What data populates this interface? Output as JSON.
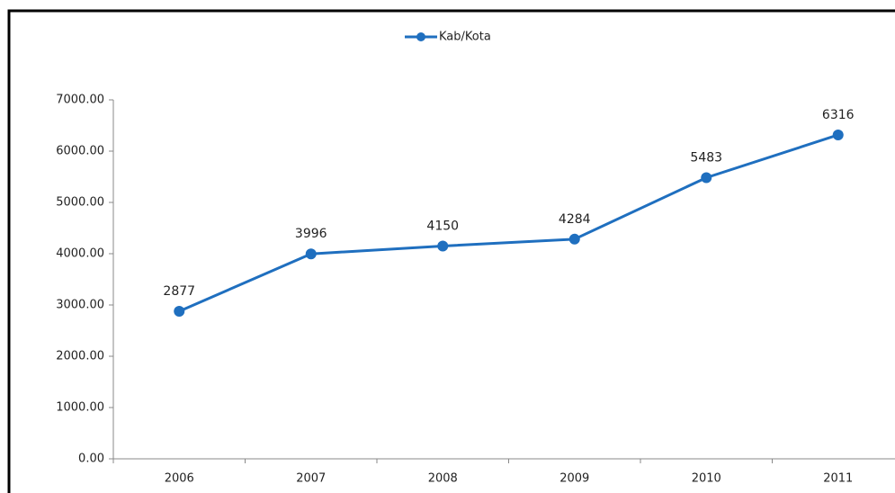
{
  "chart_data": {
    "type": "line",
    "categories": [
      "2006",
      "2007",
      "2008",
      "2009",
      "2010",
      "2011"
    ],
    "series": [
      {
        "name": "Kab/Kota",
        "color": "#1f6fbf",
        "values": [
          2877,
          3996,
          4150,
          4284,
          5483,
          6316
        ]
      }
    ],
    "ylim": [
      0,
      7000
    ],
    "yticks": [
      {
        "value": 0,
        "label": "0.00"
      },
      {
        "value": 1000,
        "label": "1000.00"
      },
      {
        "value": 2000,
        "label": "2000.00"
      },
      {
        "value": 3000,
        "label": "3000.00"
      },
      {
        "value": 4000,
        "label": "4000.00"
      },
      {
        "value": 5000,
        "label": "5000.00"
      },
      {
        "value": 6000,
        "label": "6000.00"
      },
      {
        "value": 7000,
        "label": "7000.00"
      }
    ],
    "legend": "top"
  }
}
